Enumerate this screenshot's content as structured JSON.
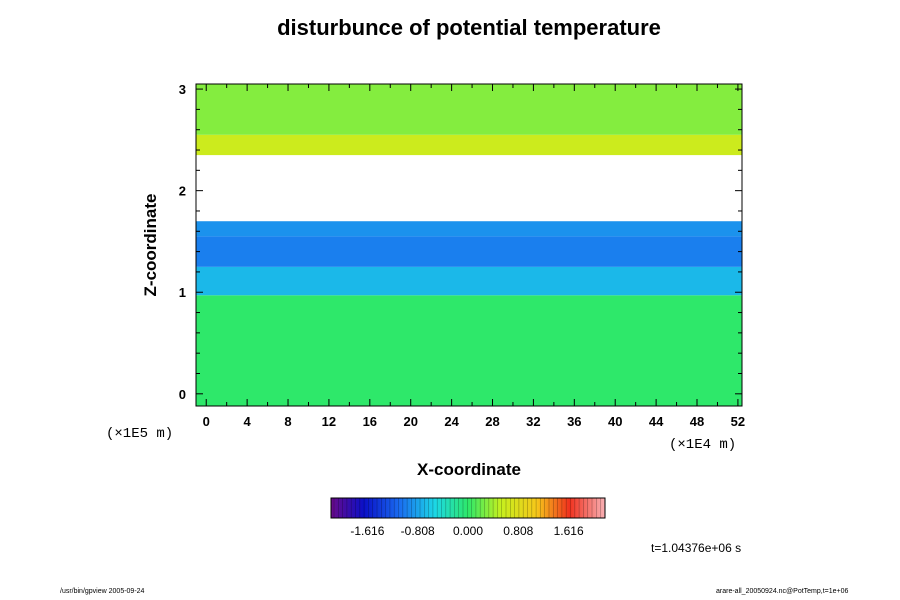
{
  "chart_data": {
    "type": "heatmap",
    "title": "disturbunce of potential temperature",
    "xlabel": "X-coordinate",
    "ylabel": "Z-coordinate",
    "x_ticks": [
      "0",
      "4",
      "8",
      "12",
      "16",
      "20",
      "24",
      "28",
      "32",
      "36",
      "40",
      "44",
      "48",
      "52"
    ],
    "y_ticks": [
      "0",
      "1",
      "2",
      "3"
    ],
    "xlim": [
      -1,
      52.4
    ],
    "ylim": [
      -0.12,
      3.05
    ],
    "x_unit_label": "(×1E4 m)",
    "y_unit_label": "(×1E5 m)",
    "colorbar": {
      "ticks": [
        "-1.616",
        "-0.808",
        "0.000",
        "0.808",
        "1.616"
      ],
      "tick_values": [
        -1.616,
        -0.808,
        0.0,
        0.808,
        1.616
      ],
      "range": [
        -2.2,
        2.2
      ],
      "colormap": "rainbow"
    },
    "time_label": "t=1.04376e+06 s",
    "footer_left": "/usr/bin/gpview 2005-09-24",
    "footer_right": "arare-all_20050924.nc@PotTemp,t=1e+06",
    "layers": [
      {
        "z_from": -0.12,
        "z_to": 0.97,
        "value": 0.0
      },
      {
        "z_from": 0.97,
        "z_to": 1.25,
        "value": -0.7
      },
      {
        "z_from": 1.25,
        "z_to": 1.55,
        "value": -1.0
      },
      {
        "z_from": 1.55,
        "z_to": 1.7,
        "value": -0.9
      },
      {
        "z_from": 1.7,
        "z_to": 2.35,
        "value": 2.5
      },
      {
        "z_from": 2.35,
        "z_to": 2.55,
        "value": 0.6
      },
      {
        "z_from": 2.55,
        "z_to": 3.05,
        "value": 0.3
      }
    ]
  }
}
